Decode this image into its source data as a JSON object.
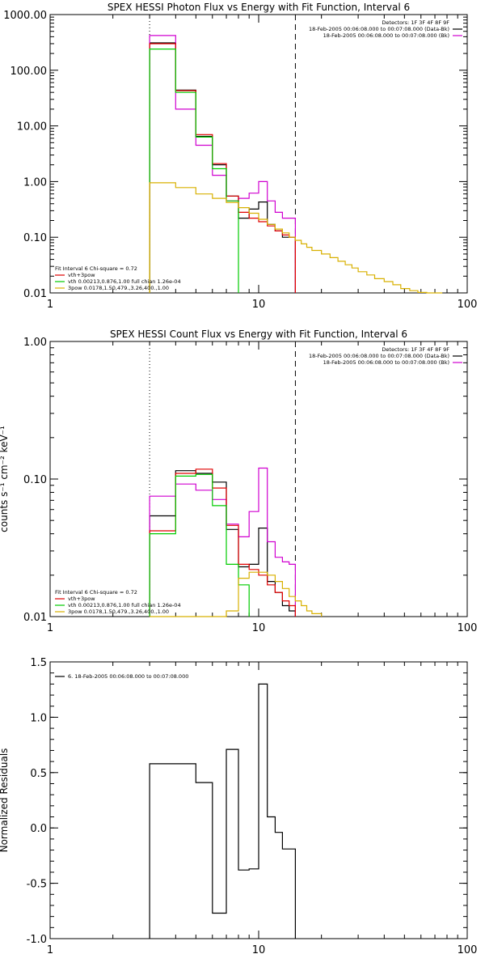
{
  "chart_data": [
    {
      "type": "line",
      "step": true,
      "title": "SPEX HESSI Photon Flux vs Energy with Fit Function, Interval 6",
      "xscale": "log",
      "yscale": "log",
      "xlim": [
        1,
        100
      ],
      "ylim": [
        0.01,
        1000
      ],
      "xticks": [
        1,
        10,
        100
      ],
      "xtick_labels": [
        "1",
        "10",
        "100"
      ],
      "yticks": [
        0.01,
        0.1,
        1,
        10,
        100,
        1000
      ],
      "ytick_labels": [
        "0.01",
        "0.10",
        "1.00",
        "10.00",
        "100.00",
        "1000.00"
      ],
      "vlines": [
        {
          "x": 3,
          "style": "dotted"
        },
        {
          "x": 15,
          "style": "dashed"
        }
      ],
      "legend_right": {
        "lines": [
          "Detectors: 1F 3F 4F 8F 9F",
          "18-Feb-2005 00:06:08.000 to 00:07:08.000 (Data-Bk)",
          "18-Feb-2005 00:06:08.000 to 00:07:08.000 (Bk)"
        ],
        "colors": [
          "",
          "#000000",
          "#d000d0"
        ]
      },
      "legend_left": {
        "lines": [
          "Fit Interval  6    Chi-square = 0.72",
          "vth+3pow",
          "vth 0.00213,0.876,1.00   full chian 1.26e-04",
          "3pow 0.0178,1.50,479.,3.26,400.,1.00"
        ],
        "colors": [
          "",
          "#e00000",
          "#00cc00",
          "#d8b000"
        ]
      },
      "series": [
        {
          "name": "Data-Bk",
          "color": "#000000",
          "edges": [
            3,
            4,
            5,
            6,
            7,
            8,
            9,
            10,
            11,
            12,
            13,
            14,
            15
          ],
          "values": [
            310,
            44,
            6.5,
            2.0,
            0.55,
            0.22,
            0.32,
            0.43,
            0.17,
            0.13,
            0.1,
            0.1
          ]
        },
        {
          "name": "Bk",
          "color": "#d000d0",
          "edges": [
            3,
            4,
            5,
            6,
            7,
            8,
            9,
            10,
            11,
            12,
            13,
            14,
            15
          ],
          "values": [
            420,
            20,
            4.5,
            1.3,
            0.45,
            0.5,
            0.62,
            1.0,
            0.45,
            0.28,
            0.22,
            0.22
          ]
        },
        {
          "name": "vth+3pow",
          "color": "#e00000",
          "edges": [
            3,
            4,
            5,
            6,
            7,
            8,
            9,
            10,
            11,
            12,
            13,
            14,
            15
          ],
          "values": [
            300,
            43,
            7.0,
            2.1,
            0.55,
            0.28,
            0.22,
            0.19,
            0.16,
            0.13,
            0.11,
            0.1
          ]
        },
        {
          "name": "vth",
          "color": "#00cc00",
          "edges": [
            3,
            4,
            5,
            6,
            7,
            8
          ],
          "values": [
            240,
            40,
            6.3,
            1.7,
            0.45
          ]
        },
        {
          "name": "3pow",
          "color": "#d8b000",
          "edges": [
            3,
            4,
            5,
            6,
            7,
            8,
            9,
            10,
            11,
            12,
            13,
            14,
            15,
            16,
            17,
            18,
            20,
            22,
            24,
            26,
            28,
            30,
            33,
            36,
            40,
            44,
            48,
            53,
            58,
            64,
            70,
            76
          ],
          "values": [
            0.95,
            0.78,
            0.6,
            0.5,
            0.42,
            0.34,
            0.27,
            0.21,
            0.17,
            0.14,
            0.12,
            0.1,
            0.088,
            0.076,
            0.066,
            0.058,
            0.05,
            0.043,
            0.037,
            0.032,
            0.028,
            0.024,
            0.021,
            0.018,
            0.016,
            0.014,
            0.012,
            0.011,
            0.0102,
            0.0097,
            0.0093
          ]
        }
      ]
    },
    {
      "type": "line",
      "step": true,
      "title": "SPEX HESSI Count Flux vs Energy with Fit Function, Interval 6",
      "ylabel": "counts s⁻¹ cm⁻² keV⁻¹",
      "xscale": "log",
      "yscale": "log",
      "xlim": [
        1,
        100
      ],
      "ylim": [
        0.01,
        1
      ],
      "xticks": [
        1,
        10,
        100
      ],
      "xtick_labels": [
        "1",
        "10",
        "100"
      ],
      "yticks": [
        0.01,
        0.1,
        1
      ],
      "ytick_labels": [
        "0.01",
        "0.10",
        "1.00"
      ],
      "vlines": [
        {
          "x": 3,
          "style": "dotted"
        },
        {
          "x": 15,
          "style": "dashed"
        }
      ],
      "legend_right": {
        "lines": [
          "Detectors: 1F 3F 4F 8F 9F",
          "18-Feb-2005 00:06:08.000 to 00:07:08.000 (Data-Bk)",
          "18-Feb-2005 00:06:08.000 to 00:07:08.000 (Bk)"
        ],
        "colors": [
          "",
          "#000000",
          "#d000d0"
        ]
      },
      "legend_left": {
        "lines": [
          "Fit Interval  6    Chi-square = 0.72",
          "vth+3pow",
          "vth 0.00213,0.876,1.00   full chian 1.26e-04",
          "3pow 0.0178,1.50,479.,3.26,400.,1.00"
        ],
        "colors": [
          "",
          "#e00000",
          "#00cc00",
          "#d8b000"
        ]
      },
      "series": [
        {
          "name": "Data-Bk",
          "color": "#000000",
          "edges": [
            3,
            4,
            5,
            6,
            7,
            8,
            9,
            10,
            11,
            12,
            13,
            14,
            15
          ],
          "values": [
            0.054,
            0.115,
            0.11,
            0.095,
            0.043,
            0.023,
            0.024,
            0.044,
            0.018,
            0.015,
            0.012,
            0.011
          ]
        },
        {
          "name": "Bk",
          "color": "#d000d0",
          "edges": [
            3,
            4,
            5,
            6,
            7,
            8,
            9,
            10,
            11,
            12,
            13,
            14,
            15
          ],
          "values": [
            0.075,
            0.092,
            0.083,
            0.071,
            0.047,
            0.038,
            0.058,
            0.12,
            0.035,
            0.027,
            0.025,
            0.024
          ]
        },
        {
          "name": "vth+3pow",
          "color": "#e00000",
          "edges": [
            3,
            4,
            5,
            6,
            7,
            8,
            9,
            10,
            11,
            12,
            13,
            14,
            15
          ],
          "values": [
            0.042,
            0.11,
            0.118,
            0.086,
            0.046,
            0.024,
            0.022,
            0.02,
            0.017,
            0.015,
            0.013,
            0.012
          ]
        },
        {
          "name": "vth",
          "color": "#00cc00",
          "edges": [
            3,
            4,
            5,
            6,
            7,
            8,
            9
          ],
          "values": [
            0.04,
            0.105,
            0.108,
            0.064,
            0.024,
            0.017
          ]
        },
        {
          "name": "3pow",
          "color": "#d8b000",
          "edges": [
            3,
            4,
            5,
            6,
            7,
            8,
            9,
            10,
            11,
            12,
            13,
            14,
            15,
            16,
            17,
            18,
            20
          ],
          "values": [
            0.0085,
            0.0085,
            0.0085,
            0.0085,
            0.011,
            0.019,
            0.021,
            0.021,
            0.02,
            0.018,
            0.016,
            0.014,
            0.013,
            0.012,
            0.011,
            0.0105
          ]
        }
      ]
    },
    {
      "type": "line",
      "step": true,
      "ylabel": "Normalized Residuals",
      "xscale": "log",
      "yscale": "linear",
      "xlim": [
        1,
        100
      ],
      "ylim": [
        -1.0,
        1.5
      ],
      "xticks": [
        1,
        10,
        100
      ],
      "xtick_labels": [
        "1",
        "10",
        "100"
      ],
      "yticks": [
        -1.0,
        -0.5,
        0.0,
        0.5,
        1.0,
        1.5
      ],
      "ytick_labels": [
        "-1.0",
        "-0.5",
        "0.0",
        "0.5",
        "1.0",
        "1.5"
      ],
      "legend_left": {
        "lines": [
          "6. 18-Feb-2005 00:06:08.000 to 00:07:08.000"
        ],
        "colors": [
          "#000000"
        ]
      },
      "series": [
        {
          "name": "6. 18-Feb-2005 00:06:08.000 to 00:07:08.000",
          "color": "#000000",
          "edges": [
            3,
            4,
            5,
            6,
            7,
            8,
            9,
            10,
            11,
            12,
            13,
            14,
            15
          ],
          "values": [
            0.58,
            0.58,
            0.41,
            -0.77,
            0.71,
            -0.38,
            -0.37,
            1.3,
            0.1,
            -0.04,
            -0.19,
            -0.19
          ]
        }
      ]
    }
  ]
}
